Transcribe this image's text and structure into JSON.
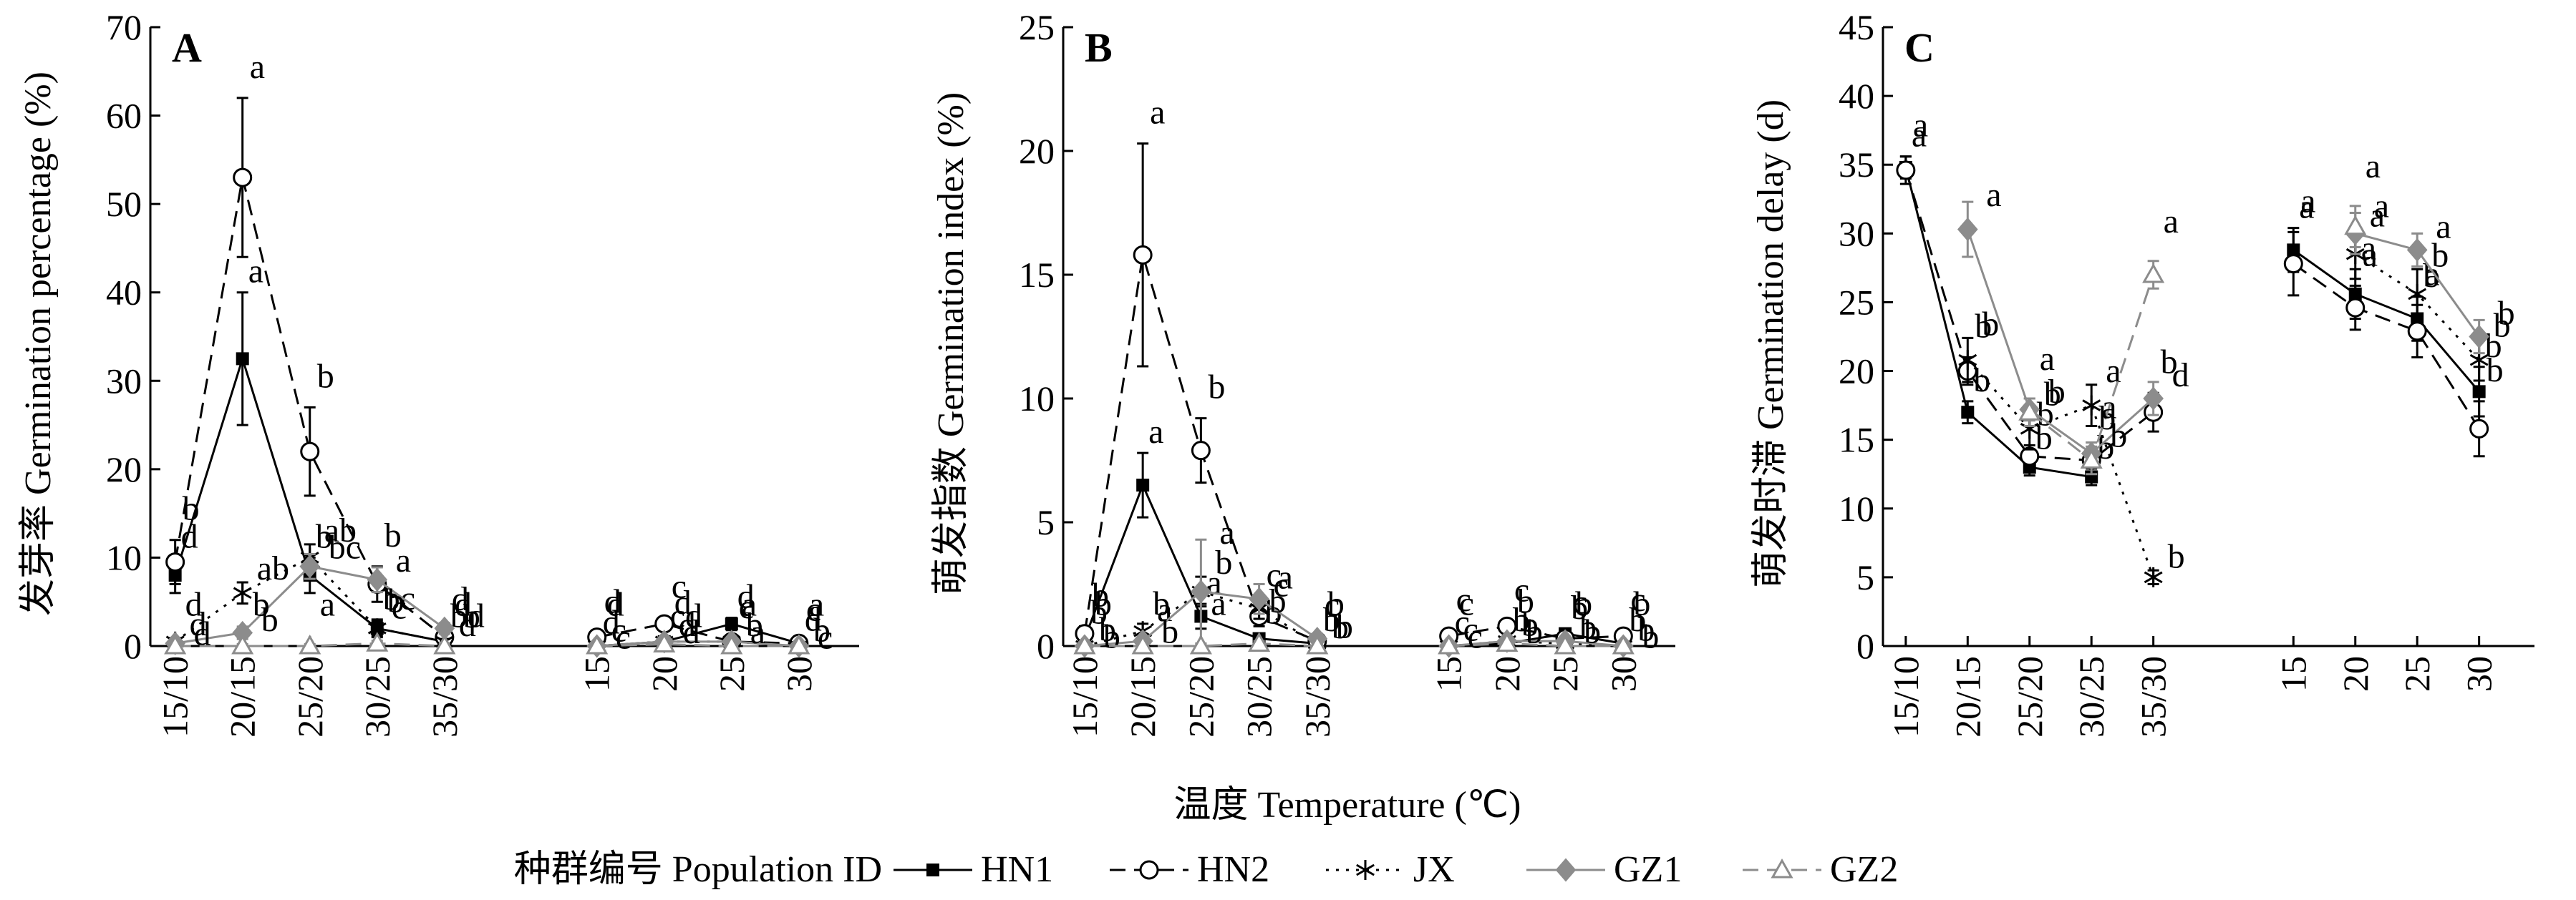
{
  "figure": {
    "common_xlabel": "温度 Temperature (℃)",
    "legend_title": "种群编号 Population ID",
    "legend": [
      {
        "name": "HN1",
        "marker": "square-filled",
        "line": "solid"
      },
      {
        "name": "HN2",
        "marker": "circle-open",
        "line": "dashed"
      },
      {
        "name": "JX",
        "marker": "star",
        "line": "dotted"
      },
      {
        "name": "GZ1",
        "marker": "diamond-gray",
        "line": "solid"
      },
      {
        "name": "GZ2",
        "marker": "triangle-open",
        "line": "dashed"
      }
    ],
    "colors": {
      "HN1": "#000000",
      "HN2": "#000000",
      "JX": "#000000",
      "GZ1": "#8c8c8c",
      "GZ2": "#8c8c8c"
    }
  },
  "chart_data": [
    {
      "panel": "A",
      "type": "line",
      "ylabel": "发芽率 Germination percentage (%)",
      "ylim": [
        0,
        70
      ],
      "yticks": [
        0,
        10,
        20,
        30,
        40,
        50,
        60,
        70
      ],
      "categories": [
        "15/10",
        "20/15",
        "25/20",
        "30/25",
        "35/30",
        "15",
        "20",
        "25",
        "30"
      ],
      "series": [
        {
          "name": "HN1",
          "values": [
            8,
            32.5,
            8,
            2,
            0.5,
            0,
            0.5,
            2.5,
            0.3
          ],
          "errors": [
            2,
            7.5,
            2,
            1,
            0.5,
            0.3,
            0.5,
            0.7,
            0.3
          ],
          "letters": [
            "d",
            "a",
            "b",
            "bc",
            "bd",
            "d",
            "cd",
            "d",
            "d"
          ]
        },
        {
          "name": "HN2",
          "values": [
            9.5,
            53,
            22,
            7,
            1,
            1,
            2.5,
            0.5,
            0.3
          ],
          "errors": [
            2.5,
            9,
            5,
            2,
            0.8,
            0.5,
            0.7,
            0.4,
            0.3
          ],
          "letters": [
            "b",
            "a",
            "b",
            "b",
            "d",
            "d",
            "c",
            "c",
            "c"
          ]
        },
        {
          "name": "JX",
          "values": [
            0.5,
            6,
            10,
            2,
            0.5,
            0,
            0.5,
            0.5,
            0
          ],
          "errors": [
            0.4,
            1.2,
            1.5,
            0.8,
            0.3,
            0.2,
            0.3,
            0.3,
            0.2
          ],
          "letters": [
            "d",
            "ab",
            "ab",
            "c",
            "d",
            "c",
            "d",
            "b",
            "b"
          ]
        },
        {
          "name": "GZ1",
          "values": [
            0.3,
            1.5,
            9,
            7.5,
            2,
            0,
            0.5,
            0.5,
            0
          ],
          "errors": [
            0.3,
            0.7,
            1.4,
            1.4,
            0.6,
            0.2,
            0.3,
            0.3,
            0.2
          ],
          "letters": [
            "d",
            "b",
            "bc",
            "a",
            "b",
            "c",
            "d",
            "a",
            "c"
          ]
        },
        {
          "name": "GZ2",
          "values": [
            0,
            0,
            0,
            0.3,
            0,
            0,
            0.2,
            0,
            0
          ],
          "errors": [
            0.2,
            0.2,
            0.2,
            0.3,
            0.2,
            0.2,
            0.2,
            0.2,
            0.2
          ],
          "letters": [
            "d",
            "b",
            "a",
            "b",
            "d",
            "d",
            "d",
            "a",
            "a"
          ]
        }
      ]
    },
    {
      "panel": "B",
      "type": "line",
      "ylabel": "萌发指数 Germination index (%)",
      "ylim": [
        0,
        25
      ],
      "yticks": [
        0,
        5,
        10,
        15,
        20,
        25
      ],
      "categories": [
        "15/10",
        "20/15",
        "25/20",
        "30/25",
        "35/30",
        "15",
        "20",
        "25",
        "30"
      ],
      "series": [
        {
          "name": "HN1",
          "values": [
            0.3,
            6.5,
            1.2,
            0.3,
            0.1,
            0,
            0.1,
            0.5,
            0.1
          ],
          "errors": [
            0.2,
            1.3,
            0.5,
            0.2,
            0.1,
            0.1,
            0.1,
            0.2,
            0.1
          ],
          "letters": [
            "b",
            "a",
            "a",
            "b",
            "b",
            "c",
            "b",
            "b",
            "b"
          ]
        },
        {
          "name": "HN2",
          "values": [
            0.5,
            15.8,
            7.9,
            1.2,
            0.2,
            0.4,
            0.8,
            0.3,
            0.4
          ],
          "errors": [
            0.3,
            4.5,
            1.3,
            0.4,
            0.2,
            0.2,
            0.2,
            0.2,
            0.2
          ],
          "letters": [
            "b",
            "a",
            "b",
            "c",
            "c",
            "c",
            "c",
            "c",
            "c"
          ]
        },
        {
          "name": "JX",
          "values": [
            0,
            0.6,
            2.2,
            1.5,
            0.1,
            0,
            0.2,
            0.1,
            0
          ],
          "errors": [
            0.1,
            0.3,
            0.6,
            0.4,
            0.1,
            0.1,
            0.1,
            0.1,
            0.1
          ],
          "letters": [
            "b",
            "a",
            "b",
            "c",
            "b",
            "c",
            "b",
            "b",
            "b"
          ]
        },
        {
          "name": "GZ1",
          "values": [
            0,
            0.2,
            2.2,
            1.9,
            0.3,
            0,
            0.2,
            0.2,
            0
          ],
          "errors": [
            0.1,
            0.1,
            2.1,
            0.6,
            0.2,
            0.1,
            0.1,
            0.1,
            0.1
          ],
          "letters": [
            "b",
            "b",
            "a",
            "a",
            "b",
            "c",
            "b",
            "b",
            "b"
          ]
        },
        {
          "name": "GZ2",
          "values": [
            0,
            0,
            0,
            0.1,
            0,
            0,
            0.1,
            0,
            0
          ],
          "errors": [
            0.1,
            0.1,
            0.1,
            0.1,
            0.1,
            0.1,
            0.1,
            0.1,
            0.1
          ],
          "letters": [
            "b",
            "b",
            "a",
            "b",
            "b",
            "c",
            "b",
            "b",
            "b"
          ]
        }
      ]
    },
    {
      "panel": "C",
      "type": "line",
      "ylabel": "萌发时滞 Germination delay (d)",
      "ylim": [
        0,
        45
      ],
      "yticks": [
        0,
        5,
        10,
        15,
        20,
        25,
        30,
        35,
        40,
        45
      ],
      "categories": [
        "15/10",
        "20/15",
        "25/20",
        "30/25",
        "35/30",
        "15",
        "20",
        "25",
        "30"
      ],
      "series": [
        {
          "name": "HN1",
          "values": [
            34.8,
            17,
            13,
            12.3,
            null,
            28.8,
            25.6,
            23.8,
            18.5
          ],
          "errors": [
            0.8,
            0.8,
            0.6,
            0.6,
            null,
            1.6,
            1.8,
            1.6,
            1.8
          ],
          "letters": [
            "a",
            "b",
            "b",
            "b",
            null,
            "a",
            "a",
            "b",
            "b"
          ]
        },
        {
          "name": "HN2",
          "values": [
            34.6,
            20,
            13.8,
            13.5,
            17,
            27.8,
            24.6,
            22.9,
            15.8
          ],
          "errors": [
            1,
            1,
            0.8,
            0.8,
            1.4,
            2.3,
            1.6,
            1.9,
            2
          ],
          "letters": [
            "a",
            "b",
            "b",
            "b",
            "b",
            "a",
            "a",
            "a",
            "b"
          ]
        },
        {
          "name": "JX",
          "values": [
            null,
            20.8,
            15.8,
            17.5,
            5,
            null,
            28.5,
            25.6,
            20.8
          ],
          "errors": [
            null,
            1.6,
            1.5,
            1.5,
            0.5,
            null,
            1.8,
            1.8,
            1.5
          ],
          "letters": [
            null,
            "b",
            "b",
            "a",
            "b",
            null,
            "a",
            "b",
            "b"
          ]
        },
        {
          "name": "GZ1",
          "values": [
            null,
            30.3,
            17.2,
            14,
            18,
            null,
            30,
            28.8,
            22.5
          ],
          "errors": [
            null,
            2,
            0.8,
            0.8,
            1.2,
            null,
            1.5,
            1.2,
            1.2
          ],
          "letters": [
            null,
            "a",
            "b",
            "b",
            "d",
            null,
            "a",
            "a",
            "b"
          ]
        },
        {
          "name": "GZ2",
          "values": [
            null,
            null,
            17,
            13.5,
            27,
            null,
            30.5,
            null,
            null
          ],
          "errors": [
            null,
            null,
            1,
            1,
            1,
            null,
            1.5,
            null,
            null
          ],
          "letters": [
            null,
            null,
            "a",
            "a",
            "a",
            null,
            "a",
            null,
            null
          ]
        }
      ]
    }
  ]
}
